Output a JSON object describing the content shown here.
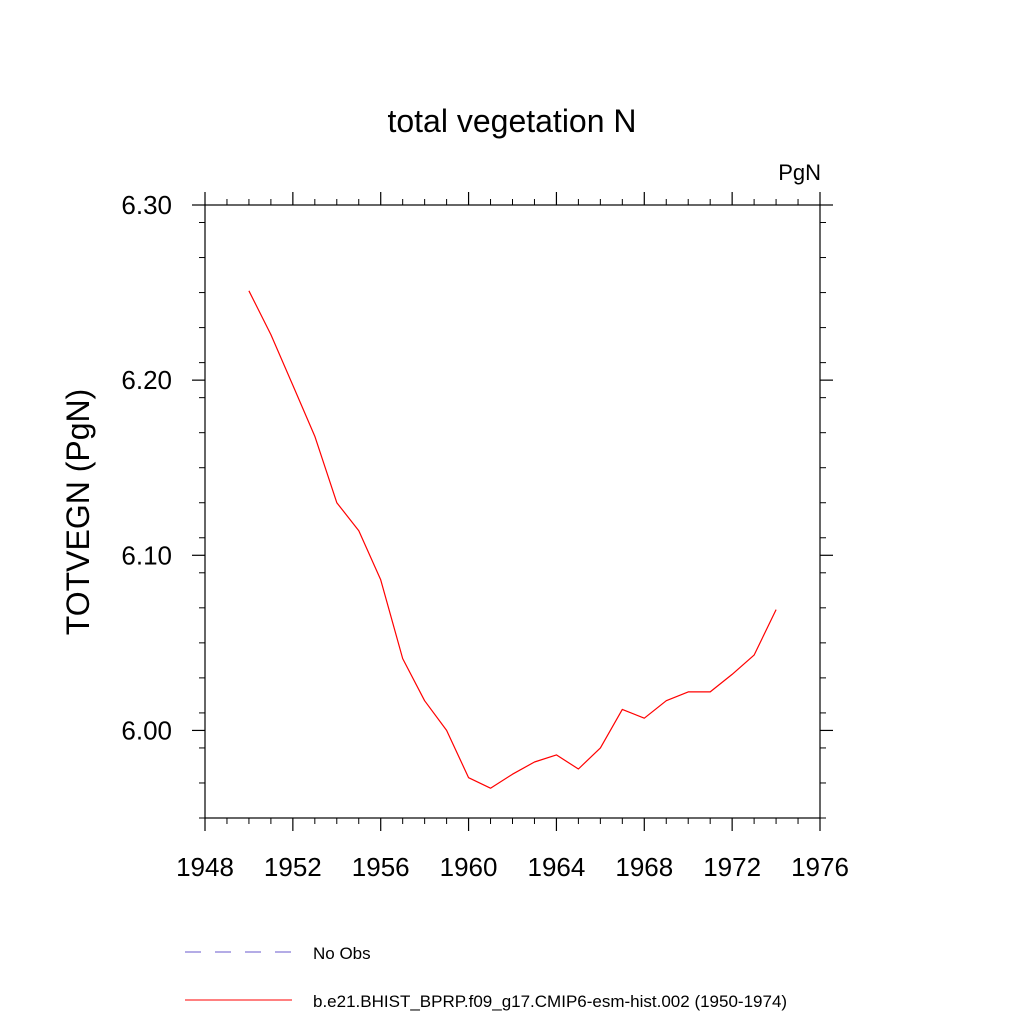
{
  "chart_data": {
    "type": "line",
    "title": "total vegetation N",
    "units_label": "PgN",
    "ylabel": "TOTVEGN  (PgN)",
    "xlabel": "",
    "xlim": [
      1948,
      1976
    ],
    "ylim": [
      5.95,
      6.3
    ],
    "x_ticks": [
      1948,
      1952,
      1956,
      1960,
      1964,
      1968,
      1972,
      1976
    ],
    "x_tick_labels": [
      "1948",
      "1952",
      "1956",
      "1960",
      "1964",
      "1968",
      "1972",
      "1976"
    ],
    "y_ticks": [
      6.0,
      6.1,
      6.2,
      6.3
    ],
    "y_tick_labels": [
      "6.00",
      "6.10",
      "6.20",
      "6.30"
    ],
    "grid": false,
    "series": [
      {
        "name": "b.e21.BHIST_BPRP.f09_g17.CMIP6-esm-hist.002 (1950-1974)",
        "color": "#ff0000",
        "x": [
          1950,
          1951,
          1952,
          1953,
          1954,
          1955,
          1956,
          1957,
          1958,
          1959,
          1960,
          1961,
          1962,
          1963,
          1964,
          1965,
          1966,
          1967,
          1968,
          1969,
          1970,
          1971,
          1972,
          1973,
          1974
        ],
        "values": [
          6.251,
          6.226,
          6.197,
          6.168,
          6.13,
          6.114,
          6.086,
          6.041,
          6.017,
          6.0,
          5.973,
          5.967,
          5.975,
          5.982,
          5.986,
          5.978,
          5.99,
          6.012,
          6.007,
          6.017,
          6.022,
          6.022,
          6.032,
          6.043,
          6.069
        ]
      }
    ],
    "legend": [
      {
        "label": "No Obs",
        "color": "#6a5acd",
        "style": "dashed"
      },
      {
        "label": "b.e21.BHIST_BPRP.f09_g17.CMIP6-esm-hist.002 (1950-1974)",
        "color": "#ff0000",
        "style": "solid"
      }
    ]
  }
}
